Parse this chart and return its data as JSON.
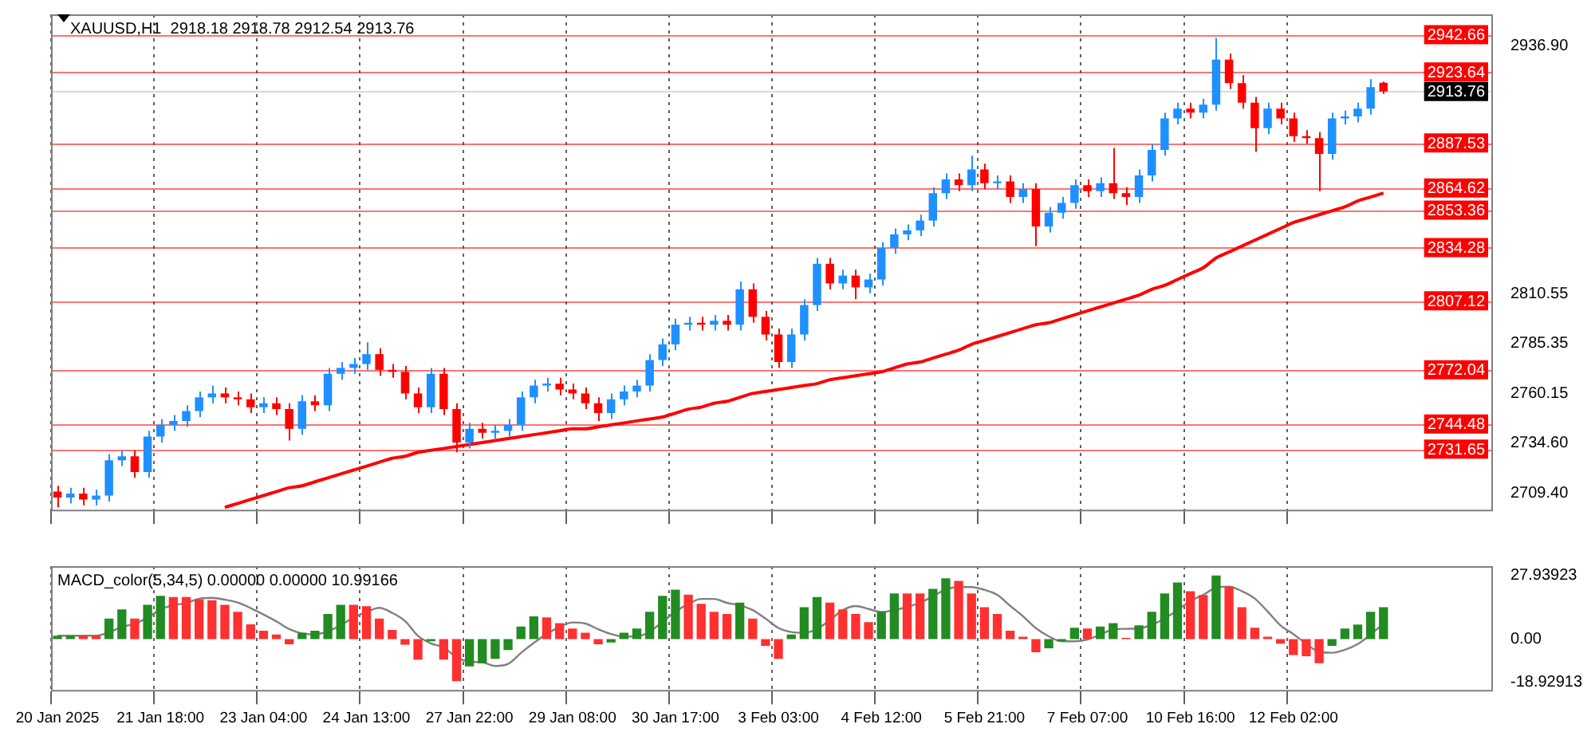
{
  "chart_data": [
    {
      "type": "candlestick",
      "title": "XAUUSD,H1  2918.18 2918.78 2912.54 2913.76",
      "categories": [
        null,
        null,
        null,
        null,
        null,
        null,
        null,
        null,
        null,
        null,
        null,
        null,
        null,
        null,
        null,
        null,
        null,
        null,
        null,
        null,
        null,
        null,
        null,
        null,
        null,
        null,
        null,
        null,
        null,
        null,
        null,
        null,
        null,
        null,
        null,
        null,
        null,
        null,
        null,
        null,
        null,
        null,
        null,
        null,
        null,
        null,
        null,
        null,
        null,
        null,
        null,
        null,
        null,
        null,
        null,
        null,
        null,
        null,
        null,
        null,
        null,
        null,
        null,
        null,
        null,
        null,
        null,
        null,
        null,
        null,
        null,
        null,
        null,
        null,
        null,
        null,
        null,
        null,
        null,
        null,
        null,
        null,
        null,
        null,
        null,
        null,
        null,
        null,
        null,
        null,
        null,
        null,
        null,
        null,
        null,
        null,
        null,
        null,
        null,
        null,
        null,
        null,
        null,
        null,
        null,
        null,
        null,
        null,
        null,
        null,
        null,
        null
      ],
      "ohlc": [
        [
          2710,
          2713,
          2702,
          2707
        ],
        [
          2707,
          2712,
          2704,
          2709
        ],
        [
          2709,
          2712,
          2703,
          2706
        ],
        [
          2706,
          2711,
          2703,
          2708
        ],
        [
          2708,
          2729,
          2705,
          2726
        ],
        [
          2726,
          2731,
          2723,
          2728
        ],
        [
          2728,
          2731,
          2717,
          2720
        ],
        [
          2720,
          2741,
          2717,
          2738
        ],
        [
          2738,
          2747,
          2735,
          2744
        ],
        [
          2744,
          2749,
          2741,
          2746
        ],
        [
          2746,
          2754,
          2743,
          2751
        ],
        [
          2751,
          2761,
          2748,
          2758
        ],
        [
          2758,
          2764,
          2755,
          2760
        ],
        [
          2760,
          2763,
          2755,
          2758
        ],
        [
          2758,
          2761,
          2754,
          2757
        ],
        [
          2757,
          2760,
          2750,
          2753
        ],
        [
          2753,
          2758,
          2750,
          2755
        ],
        [
          2755,
          2758,
          2749,
          2752
        ],
        [
          2752,
          2755,
          2736,
          2742
        ],
        [
          2742,
          2759,
          2739,
          2756
        ],
        [
          2756,
          2759,
          2751,
          2754
        ],
        [
          2754,
          2773,
          2751,
          2770
        ],
        [
          2770,
          2776,
          2767,
          2773
        ],
        [
          2773,
          2778,
          2770,
          2775
        ],
        [
          2775,
          2786,
          2772,
          2780
        ],
        [
          2780,
          2783,
          2769,
          2772
        ],
        [
          2772,
          2775,
          2768,
          2771
        ],
        [
          2771,
          2774,
          2757,
          2760
        ],
        [
          2760,
          2763,
          2750,
          2753
        ],
        [
          2753,
          2773,
          2750,
          2770
        ],
        [
          2770,
          2773,
          2749,
          2752
        ],
        [
          2752,
          2755,
          2730,
          2735
        ],
        [
          2735,
          2745,
          2732,
          2742
        ],
        [
          2742,
          2745,
          2737,
          2740
        ],
        [
          2740,
          2744,
          2737,
          2741
        ],
        [
          2741,
          2747,
          2738,
          2744
        ],
        [
          2744,
          2761,
          2741,
          2758
        ],
        [
          2758,
          2767,
          2755,
          2764
        ],
        [
          2764,
          2768,
          2761,
          2765
        ],
        [
          2765,
          2768,
          2759,
          2762
        ],
        [
          2762,
          2765,
          2757,
          2760
        ],
        [
          2760,
          2763,
          2752,
          2755
        ],
        [
          2755,
          2758,
          2746,
          2750
        ],
        [
          2750,
          2760,
          2747,
          2757
        ],
        [
          2757,
          2764,
          2754,
          2761
        ],
        [
          2761,
          2767,
          2758,
          2764
        ],
        [
          2764,
          2780,
          2761,
          2777
        ],
        [
          2777,
          2788,
          2774,
          2785
        ],
        [
          2785,
          2798,
          2782,
          2795
        ],
        [
          2795,
          2799,
          2792,
          2796
        ],
        [
          2796,
          2799,
          2792,
          2795
        ],
        [
          2795,
          2800,
          2792,
          2797
        ],
        [
          2797,
          2800,
          2792,
          2795
        ],
        [
          2795,
          2817,
          2792,
          2813
        ],
        [
          2813,
          2816,
          2796,
          2799
        ],
        [
          2799,
          2802,
          2787,
          2790
        ],
        [
          2790,
          2793,
          2773,
          2776
        ],
        [
          2776,
          2793,
          2773,
          2790
        ],
        [
          2790,
          2808,
          2787,
          2805
        ],
        [
          2805,
          2829,
          2802,
          2826
        ],
        [
          2826,
          2829,
          2813,
          2816
        ],
        [
          2816,
          2823,
          2813,
          2820
        ],
        [
          2820,
          2823,
          2808,
          2814
        ],
        [
          2814,
          2821,
          2811,
          2818
        ],
        [
          2818,
          2837,
          2815,
          2834
        ],
        [
          2834,
          2844,
          2831,
          2841
        ],
        [
          2841,
          2846,
          2838,
          2843
        ],
        [
          2843,
          2851,
          2840,
          2848
        ],
        [
          2848,
          2865,
          2845,
          2862
        ],
        [
          2862,
          2872,
          2859,
          2869
        ],
        [
          2869,
          2872,
          2863,
          2866
        ],
        [
          2866,
          2881,
          2863,
          2874
        ],
        [
          2874,
          2877,
          2864,
          2867
        ],
        [
          2867,
          2871,
          2864,
          2868
        ],
        [
          2868,
          2871,
          2857,
          2860
        ],
        [
          2860,
          2867,
          2857,
          2864
        ],
        [
          2864,
          2867,
          2835,
          2845
        ],
        [
          2845,
          2855,
          2842,
          2852
        ],
        [
          2852,
          2860,
          2849,
          2857
        ],
        [
          2857,
          2869,
          2854,
          2866
        ],
        [
          2866,
          2869,
          2860,
          2863
        ],
        [
          2863,
          2870,
          2860,
          2867
        ],
        [
          2867,
          2885,
          2859,
          2862
        ],
        [
          2862,
          2865,
          2856,
          2860
        ],
        [
          2860,
          2874,
          2857,
          2871
        ],
        [
          2871,
          2887,
          2868,
          2884
        ],
        [
          2884,
          2903,
          2881,
          2900
        ],
        [
          2900,
          2908,
          2897,
          2905
        ],
        [
          2905,
          2908,
          2900,
          2903
        ],
        [
          2903,
          2910,
          2900,
          2907
        ],
        [
          2907,
          2941,
          2904,
          2930
        ],
        [
          2930,
          2933,
          2915,
          2918
        ],
        [
          2918,
          2922,
          2905,
          2908
        ],
        [
          2908,
          2911,
          2883,
          2895
        ],
        [
          2895,
          2908,
          2892,
          2905
        ],
        [
          2905,
          2908,
          2897,
          2900
        ],
        [
          2900,
          2903,
          2888,
          2891
        ],
        [
          2891,
          2894,
          2887,
          2890
        ],
        [
          2890,
          2893,
          2863,
          2882
        ],
        [
          2882,
          2903,
          2879,
          2900
        ],
        [
          2900,
          2904,
          2897,
          2901
        ],
        [
          2901,
          2908,
          2898,
          2905
        ],
        [
          2905,
          2920,
          2902,
          2916
        ],
        [
          2918.18,
          2918.78,
          2912.54,
          2913.76
        ],
        null,
        null,
        null,
        null,
        null,
        null,
        null,
        null
      ],
      "colors": [
        "#ff0000",
        "#1e90ff",
        "#ff0000",
        "#1e90ff",
        "#1e90ff",
        "#1e90ff",
        "#ff0000",
        "#1e90ff",
        "#1e90ff",
        "#1e90ff",
        "#1e90ff",
        "#1e90ff",
        "#1e90ff",
        "#ff0000",
        "#ff0000",
        "#ff0000",
        "#1e90ff",
        "#ff0000",
        "#ff0000",
        "#1e90ff",
        "#ff0000",
        "#1e90ff",
        "#1e90ff",
        "#1e90ff",
        "#1e90ff",
        "#ff0000",
        "#ff0000",
        "#ff0000",
        "#ff0000",
        "#1e90ff",
        "#ff0000",
        "#ff0000",
        "#1e90ff",
        "#ff0000",
        "#1e90ff",
        "#1e90ff",
        "#1e90ff",
        "#1e90ff",
        "#1e90ff",
        "#ff0000",
        "#ff0000",
        "#ff0000",
        "#ff0000",
        "#1e90ff",
        "#1e90ff",
        "#1e90ff",
        "#1e90ff",
        "#1e90ff",
        "#1e90ff",
        "#1e90ff",
        "#ff0000",
        "#1e90ff",
        "#ff0000",
        "#1e90ff",
        "#ff0000",
        "#ff0000",
        "#ff0000",
        "#1e90ff",
        "#1e90ff",
        "#1e90ff",
        "#ff0000",
        "#1e90ff",
        "#ff0000",
        "#1e90ff",
        "#1e90ff",
        "#1e90ff",
        "#1e90ff",
        "#1e90ff",
        "#1e90ff",
        "#1e90ff",
        "#ff0000",
        "#1e90ff",
        "#ff0000",
        "#1e90ff",
        "#ff0000",
        "#1e90ff",
        "#ff0000",
        "#1e90ff",
        "#1e90ff",
        "#1e90ff",
        "#ff0000",
        "#1e90ff",
        "#ff0000",
        "#ff0000",
        "#1e90ff",
        "#1e90ff",
        "#1e90ff",
        "#1e90ff",
        "#ff0000",
        "#1e90ff",
        "#1e90ff",
        "#ff0000",
        "#ff0000",
        "#ff0000",
        "#1e90ff",
        "#ff0000",
        "#ff0000",
        "#ff0000",
        "#ff0000",
        "#1e90ff",
        "#1e90ff",
        "#1e90ff",
        "#1e90ff",
        "#ff0000",
        null,
        null,
        null,
        null,
        null,
        null,
        null,
        null
      ],
      "series": [
        {
          "type": "line",
          "color": "#ff0000",
          "values": [
            null,
            null,
            null,
            null,
            null,
            null,
            null,
            null,
            null,
            null,
            null,
            null,
            null,
            2702,
            2704,
            2706,
            2708,
            2710,
            2712,
            2713,
            2715,
            2717,
            2719,
            2721,
            2723,
            2725,
            2727,
            2728,
            2730,
            2731,
            2732,
            2733,
            2734,
            2735,
            2736,
            2737,
            2738,
            2739,
            2740,
            2741,
            2742,
            2742,
            2743,
            2744,
            2745,
            2746,
            2747,
            2748,
            2750,
            2752,
            2753,
            2755,
            2756,
            2758,
            2760,
            2761,
            2762,
            2763,
            2764,
            2765,
            2767,
            2768,
            2769,
            2770,
            2771,
            2773,
            2775,
            2776,
            2778,
            2780,
            2782,
            2785,
            2787,
            2789,
            2791,
            2793,
            2795,
            2796,
            2798,
            2800,
            2802,
            2804,
            2806,
            2808,
            2810,
            2813,
            2815,
            2818,
            2821,
            2824,
            2829,
            2832,
            2835,
            2838,
            2841,
            2844,
            2847,
            2849,
            2851,
            2853,
            2855,
            2858,
            2860,
            2862,
            null,
            null,
            null,
            null,
            null,
            null,
            null,
            null
          ]
        }
      ],
      "ylim": [
        2700,
        2953
      ],
      "yticks": [
        {
          "value": 2709.4,
          "label": "2709.40"
        },
        {
          "value": 2734.6,
          "label": "2734.60"
        },
        {
          "value": 2760.15,
          "label": "2760.15"
        },
        {
          "value": 2785.35,
          "label": "2785.35"
        },
        {
          "value": 2810.55,
          "label": "2810.55"
        },
        {
          "value": 2936.9,
          "label": "2936.90"
        }
      ],
      "ref_lines": [
        {
          "axis": "y",
          "value": 2942.66,
          "label": "2942.66",
          "color": "#ff0000"
        },
        {
          "axis": "y",
          "value": 2923.64,
          "label": "2923.64",
          "color": "#ff0000"
        },
        {
          "axis": "y",
          "value": 2913.76,
          "label": "2913.76",
          "color": "#000000"
        },
        {
          "axis": "y",
          "value": 2887.53,
          "label": "2887.53",
          "color": "#ff0000"
        },
        {
          "axis": "y",
          "value": 2864.62,
          "label": "2864.62",
          "color": "#ff0000"
        },
        {
          "axis": "y",
          "value": 2853.36,
          "label": "2853.36",
          "color": "#ff0000"
        },
        {
          "axis": "y",
          "value": 2834.28,
          "label": "2834.28",
          "color": "#ff0000"
        },
        {
          "axis": "y",
          "value": 2807.12,
          "label": "2807.12",
          "color": "#ff0000"
        },
        {
          "axis": "y",
          "value": 2772.04,
          "label": "2772.04",
          "color": "#ff0000"
        },
        {
          "axis": "y",
          "value": 2744.48,
          "label": "2744.48",
          "color": "#ff0000"
        },
        {
          "axis": "y",
          "value": 2731.65,
          "label": "2731.65",
          "color": "#ff0000"
        }
      ],
      "grid": "x"
    },
    {
      "type": "bar",
      "title": "MACD_color(5,34,5) 0.00000 0.00000 10.99166",
      "categories": [
        "20 Jan 2025",
        null,
        null,
        null,
        null,
        null,
        null,
        null,
        "21 Jan 18:00",
        null,
        null,
        null,
        null,
        null,
        null,
        null,
        "23 Jan 04:00",
        null,
        null,
        null,
        null,
        null,
        null,
        null,
        "24 Jan 13:00",
        null,
        null,
        null,
        null,
        null,
        null,
        null,
        "27 Jan 22:00",
        null,
        null,
        null,
        null,
        null,
        null,
        null,
        "29 Jan 08:00",
        null,
        null,
        null,
        null,
        null,
        null,
        null,
        "30 Jan 17:00",
        null,
        null,
        null,
        null,
        null,
        null,
        null,
        "3 Feb 03:00",
        null,
        null,
        null,
        null,
        null,
        null,
        null,
        "4 Feb 12:00",
        null,
        null,
        null,
        null,
        null,
        null,
        null,
        "5 Feb 21:00",
        null,
        null,
        null,
        null,
        null,
        null,
        null,
        "7 Feb 07:00",
        null,
        null,
        null,
        null,
        null,
        null,
        null,
        "10 Feb 16:00",
        null,
        null,
        null,
        null,
        null,
        null,
        null,
        "12 Feb 02:00",
        null,
        null,
        null,
        null,
        null,
        null,
        null,
        null,
        null,
        null,
        null,
        null,
        null,
        null,
        null
      ],
      "series": [
        {
          "type": "bar",
          "values": [
            1.5,
            1.5,
            1.5,
            1.5,
            9,
            13,
            9,
            15,
            19,
            18.4,
            18.4,
            17.5,
            17,
            15,
            12,
            6.5,
            3.7,
            2,
            -2.3,
            2.8,
            3.7,
            11,
            15,
            15,
            14.4,
            9,
            4,
            -2.5,
            -9,
            -1,
            -9,
            -18.5,
            -12,
            -10.6,
            -8.7,
            -4.8,
            5.5,
            10,
            9.5,
            7,
            4.6,
            2.8,
            -2.3,
            -1.5,
            2.8,
            4.6,
            12,
            19,
            21.7,
            19.5,
            15.5,
            12,
            11,
            16,
            9,
            -3,
            -8.7,
            2,
            14,
            18.4,
            16,
            13,
            11,
            7.4,
            12,
            20,
            20,
            20,
            22,
            26.7,
            25.5,
            20,
            14,
            11,
            3.7,
            1,
            -5.8,
            -4,
            -1,
            5,
            4.6,
            5.5,
            7,
            0.5,
            6,
            12,
            20,
            24.8,
            21,
            19.3,
            27.9,
            23,
            14,
            5,
            1,
            -2,
            -7,
            -7.5,
            -10.6,
            -3,
            4.6,
            6.4,
            12,
            14,
            null,
            null,
            null,
            null,
            null,
            null,
            null,
            null
          ],
          "colors": [
            "#228b22",
            "#228b22",
            "#ff3030",
            "#ff3030",
            "#228b22",
            "#228b22",
            "#ff3030",
            "#228b22",
            "#228b22",
            "#ff3030",
            "#ff3030",
            "#ff3030",
            "#ff3030",
            "#ff3030",
            "#ff3030",
            "#ff3030",
            "#ff3030",
            "#ff3030",
            "#ff3030",
            "#228b22",
            "#228b22",
            "#228b22",
            "#228b22",
            "#ff3030",
            "#ff3030",
            "#ff3030",
            "#ff3030",
            "#ff3030",
            "#ff3030",
            "#228b22",
            "#ff3030",
            "#ff3030",
            "#228b22",
            "#228b22",
            "#228b22",
            "#228b22",
            "#228b22",
            "#228b22",
            "#ff3030",
            "#ff3030",
            "#ff3030",
            "#ff3030",
            "#ff3030",
            "#228b22",
            "#228b22",
            "#228b22",
            "#228b22",
            "#228b22",
            "#228b22",
            "#ff3030",
            "#ff3030",
            "#ff3030",
            "#ff3030",
            "#228b22",
            "#ff3030",
            "#ff3030",
            "#ff3030",
            "#228b22",
            "#228b22",
            "#228b22",
            "#ff3030",
            "#ff3030",
            "#ff3030",
            "#ff3030",
            "#228b22",
            "#228b22",
            "#ff3030",
            "#ff3030",
            "#228b22",
            "#228b22",
            "#ff3030",
            "#ff3030",
            "#ff3030",
            "#ff3030",
            "#ff3030",
            "#ff3030",
            "#ff3030",
            "#228b22",
            "#228b22",
            "#228b22",
            "#ff3030",
            "#228b22",
            "#228b22",
            "#ff3030",
            "#228b22",
            "#228b22",
            "#228b22",
            "#228b22",
            "#ff3030",
            "#ff3030",
            "#228b22",
            "#ff3030",
            "#ff3030",
            "#ff3030",
            "#ff3030",
            "#ff3030",
            "#ff3030",
            "#ff3030",
            "#ff3030",
            "#228b22",
            "#228b22",
            "#228b22",
            "#228b22",
            "#228b22",
            null,
            null,
            null,
            null,
            null,
            null,
            null,
            null
          ]
        },
        {
          "type": "line",
          "color": "#808080",
          "values": [
            1.5,
            1.5,
            1.5,
            1.5,
            3,
            5.3,
            6.8,
            9.4,
            13,
            14.9,
            15.8,
            17.7,
            18.1,
            17.3,
            16,
            13.6,
            10.8,
            7.8,
            4.4,
            2.5,
            2,
            3.4,
            6,
            9.5,
            11.8,
            13.7,
            11.5,
            7.9,
            1.4,
            -1.9,
            -3.7,
            -8,
            -9.9,
            -10.2,
            -11.8,
            -10.9,
            -6.1,
            -1.7,
            2.3,
            5.3,
            7.3,
            6.8,
            4.3,
            2.2,
            1.1,
            1.2,
            3.2,
            7.6,
            12,
            15.4,
            17.6,
            17.6,
            15.9,
            14.8,
            12.7,
            9,
            4.9,
            3.1,
            2.7,
            4.5,
            8.3,
            12.7,
            14.5,
            13.2,
            11.9,
            12.7,
            14.1,
            15.9,
            18.8,
            21.7,
            22.8,
            22.8,
            21.6,
            19.4,
            14.6,
            10,
            4.8,
            1.2,
            -1,
            -1,
            -0.2,
            2,
            4.2,
            4.5,
            4.7,
            6.2,
            9.1,
            12.7,
            16.8,
            19.4,
            22.6,
            23,
            21,
            17.8,
            12.1,
            6,
            2.2,
            -2.1,
            -5.6,
            -6,
            -4.7,
            -2.2,
            2,
            6.8,
            null,
            null,
            null,
            null,
            null,
            null,
            null,
            null
          ]
        }
      ],
      "ylim": [
        -23,
        32
      ],
      "yticks": [
        27.93923,
        {
          "value": 0,
          "label": "0.00"
        },
        -18.92913
      ],
      "grid": "x"
    }
  ]
}
